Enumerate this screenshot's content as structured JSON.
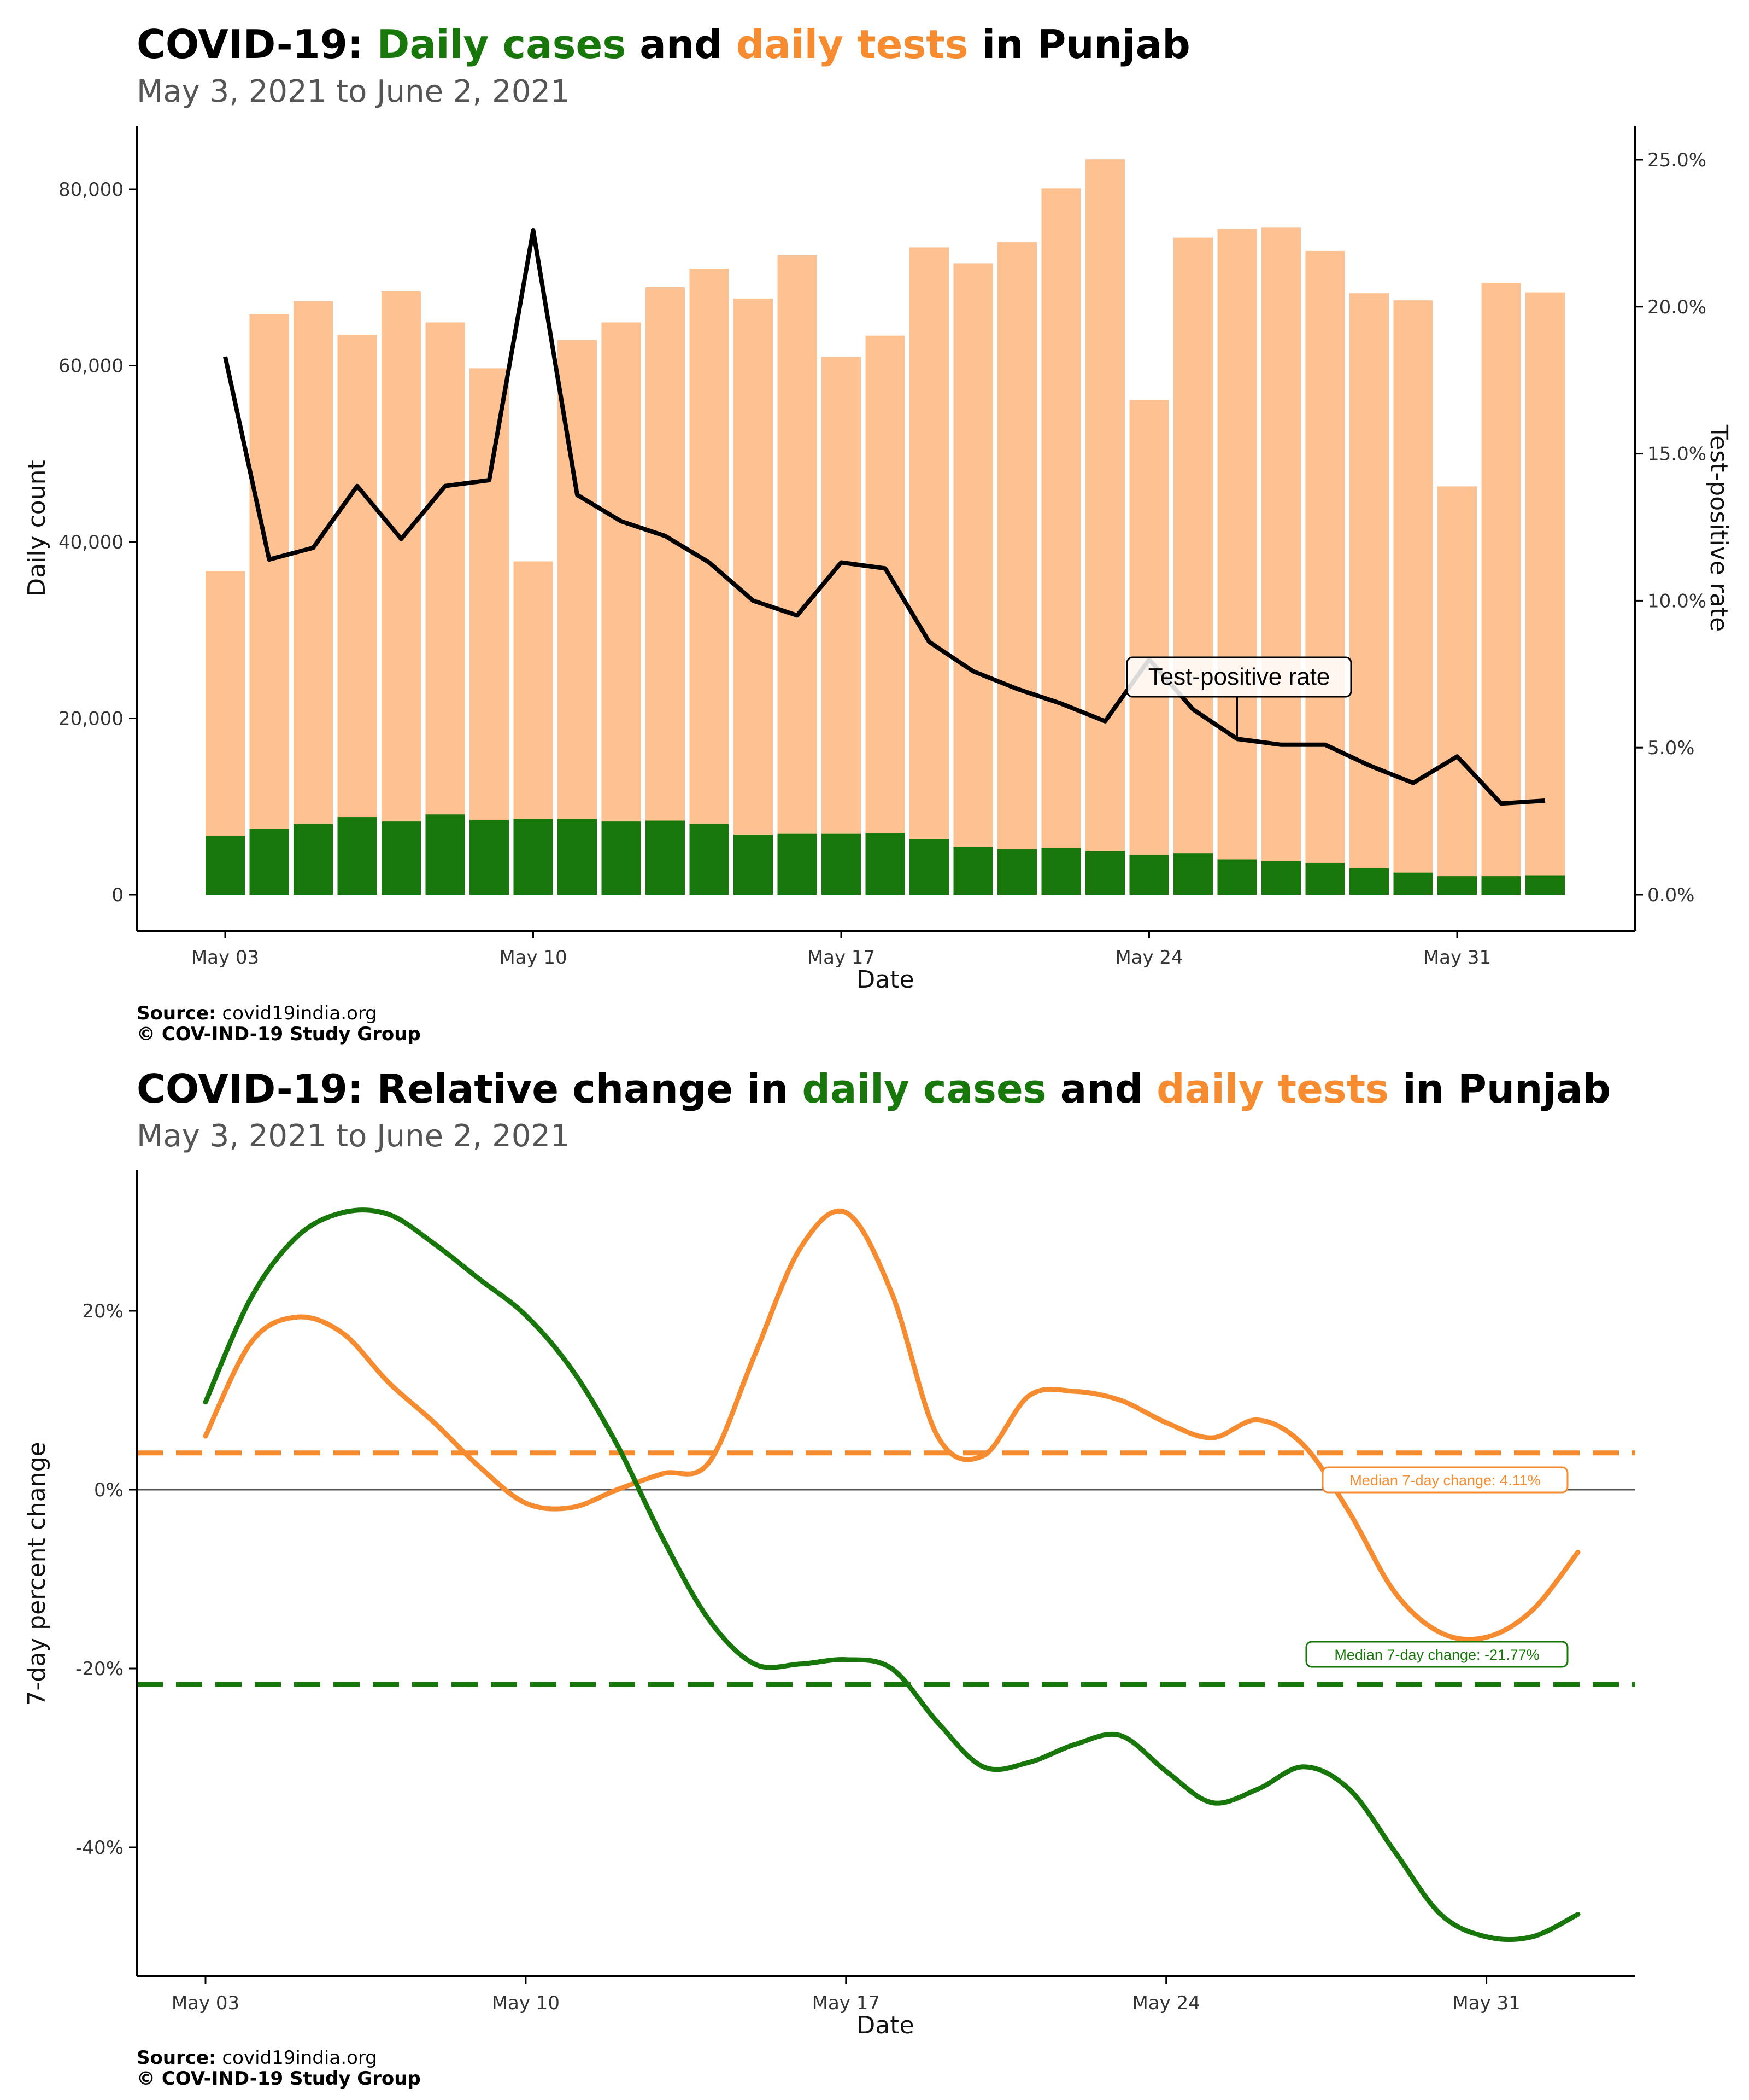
{
  "colors": {
    "cases": "#18770a",
    "tests": "#f68b2f",
    "tests_bar": "#fdc192",
    "tpr_line": "#000000",
    "text": "#000000",
    "subtitle": "#555555"
  },
  "chart_data": [
    {
      "type": "bar",
      "title": {
        "prefix": "COVID-19: ",
        "cases": "Daily cases",
        "and": " and ",
        "tests": "daily tests",
        "suffix": " in Punjab"
      },
      "subtitle": "May  3, 2021 to June  2, 2021",
      "xlabel": "Date",
      "ylabel": "Daily count",
      "y2label": "Test-positive rate",
      "x_ticks": [
        "May 03",
        "May 10",
        "May 17",
        "May 24",
        "May 31"
      ],
      "y_ticks": [
        "0",
        "20,000",
        "40,000",
        "60,000",
        "80,000"
      ],
      "y_tick_values": [
        0,
        20000,
        40000,
        60000,
        80000
      ],
      "y2_ticks": [
        "0.0%",
        "5.0%",
        "10.0%",
        "15.0%",
        "20.0%",
        "25.0%"
      ],
      "y2_tick_values": [
        0,
        5,
        10,
        15,
        20,
        25
      ],
      "ylim": [
        0,
        87000
      ],
      "y2lim": [
        0,
        26.1
      ],
      "dates": [
        "2021-05-03",
        "2021-05-04",
        "2021-05-05",
        "2021-05-06",
        "2021-05-07",
        "2021-05-08",
        "2021-05-09",
        "2021-05-10",
        "2021-05-11",
        "2021-05-12",
        "2021-05-13",
        "2021-05-14",
        "2021-05-15",
        "2021-05-16",
        "2021-05-17",
        "2021-05-18",
        "2021-05-19",
        "2021-05-20",
        "2021-05-21",
        "2021-05-22",
        "2021-05-23",
        "2021-05-24",
        "2021-05-25",
        "2021-05-26",
        "2021-05-27",
        "2021-05-28",
        "2021-05-29",
        "2021-05-30",
        "2021-05-31",
        "2021-06-01",
        "2021-06-02"
      ],
      "series": [
        {
          "name": "Daily tests",
          "values": [
            36700,
            65800,
            67300,
            63500,
            68400,
            64900,
            59700,
            37800,
            62900,
            64900,
            68900,
            71000,
            67600,
            72500,
            61000,
            63400,
            73400,
            71600,
            74000,
            80100,
            83400,
            56100,
            74500,
            75500,
            75700,
            73000,
            68200,
            67400,
            46300,
            69400,
            68300
          ]
        },
        {
          "name": "Daily cases",
          "values": [
            6700,
            7500,
            8000,
            8800,
            8300,
            9100,
            8500,
            8600,
            8600,
            8300,
            8400,
            8000,
            6800,
            6900,
            6900,
            7000,
            6300,
            5400,
            5200,
            5300,
            4900,
            4500,
            4700,
            4000,
            3800,
            3600,
            3000,
            2500,
            2100,
            2100,
            2200
          ]
        },
        {
          "name": "Test-positive rate",
          "values": [
            18.3,
            11.4,
            11.8,
            13.9,
            12.1,
            13.9,
            14.1,
            22.6,
            13.6,
            12.7,
            12.2,
            11.3,
            10.0,
            9.5,
            11.3,
            11.1,
            8.6,
            7.6,
            7.0,
            6.5,
            5.9,
            8.0,
            6.3,
            5.3,
            5.1,
            5.1,
            4.4,
            3.8,
            4.7,
            3.1,
            3.2
          ]
        }
      ],
      "annotation": "Test-positive rate",
      "source_label": "Source:",
      "source": " covid19india.org",
      "copyright": "© COV-IND-19 Study Group"
    },
    {
      "type": "line",
      "title": {
        "prefix": "COVID-19: Relative change in ",
        "cases": "daily cases",
        "and": " and ",
        "tests": "daily tests",
        "suffix": " in Punjab"
      },
      "subtitle": "May  3, 2021 to June  2, 2021",
      "xlabel": "Date",
      "ylabel": "7-day percent change",
      "x_ticks": [
        "May 03",
        "May 10",
        "May 17",
        "May 24",
        "May 31"
      ],
      "y_ticks": [
        "-40%",
        "-20%",
        "0%",
        "20%"
      ],
      "y_tick_values": [
        -40,
        -20,
        0,
        20
      ],
      "ylim": [
        -55.3,
        35.3
      ],
      "dates": [
        "2021-05-03",
        "2021-05-04",
        "2021-05-05",
        "2021-05-06",
        "2021-05-07",
        "2021-05-08",
        "2021-05-09",
        "2021-05-10",
        "2021-05-11",
        "2021-05-12",
        "2021-05-13",
        "2021-05-14",
        "2021-05-15",
        "2021-05-16",
        "2021-05-17",
        "2021-05-18",
        "2021-05-19",
        "2021-05-20",
        "2021-05-21",
        "2021-05-22",
        "2021-05-23",
        "2021-05-24",
        "2021-05-25",
        "2021-05-26",
        "2021-05-27",
        "2021-05-28",
        "2021-05-29",
        "2021-05-30",
        "2021-05-31",
        "2021-06-01",
        "2021-06-02"
      ],
      "series": [
        {
          "name": "Daily cases",
          "values": [
            9.8,
            21.5,
            28.3,
            31.0,
            30.8,
            27.5,
            23.5,
            19.5,
            13.5,
            5.0,
            -5.5,
            -14.5,
            -19.5,
            -19.5,
            -19.0,
            -20.0,
            -26.0,
            -31.0,
            -30.5,
            -28.5,
            -27.5,
            -31.5,
            -35.0,
            -33.5,
            -31.0,
            -33.5,
            -40.5,
            -47.5,
            -50.0,
            -50.0,
            -47.5
          ]
        },
        {
          "name": "Daily tests",
          "values": [
            6.0,
            16.5,
            19.3,
            17.5,
            12.0,
            7.5,
            2.5,
            -1.5,
            -2.0,
            0.0,
            1.8,
            3.0,
            15.0,
            27.0,
            31.0,
            22.0,
            6.0,
            3.8,
            10.5,
            11.0,
            10.0,
            7.5,
            5.8,
            7.8,
            5.0,
            -2.5,
            -11.5,
            -16.0,
            -16.5,
            -13.5,
            -7.0
          ]
        }
      ],
      "medians": [
        {
          "name": "Daily tests",
          "value": 4.11,
          "label": "Median 7-day change: 4.11%"
        },
        {
          "name": "Daily cases",
          "value": -21.77,
          "label": "Median 7-day change: -21.77%"
        }
      ],
      "source_label": "Source:",
      "source": " covid19india.org",
      "copyright": "© COV-IND-19 Study Group"
    }
  ]
}
